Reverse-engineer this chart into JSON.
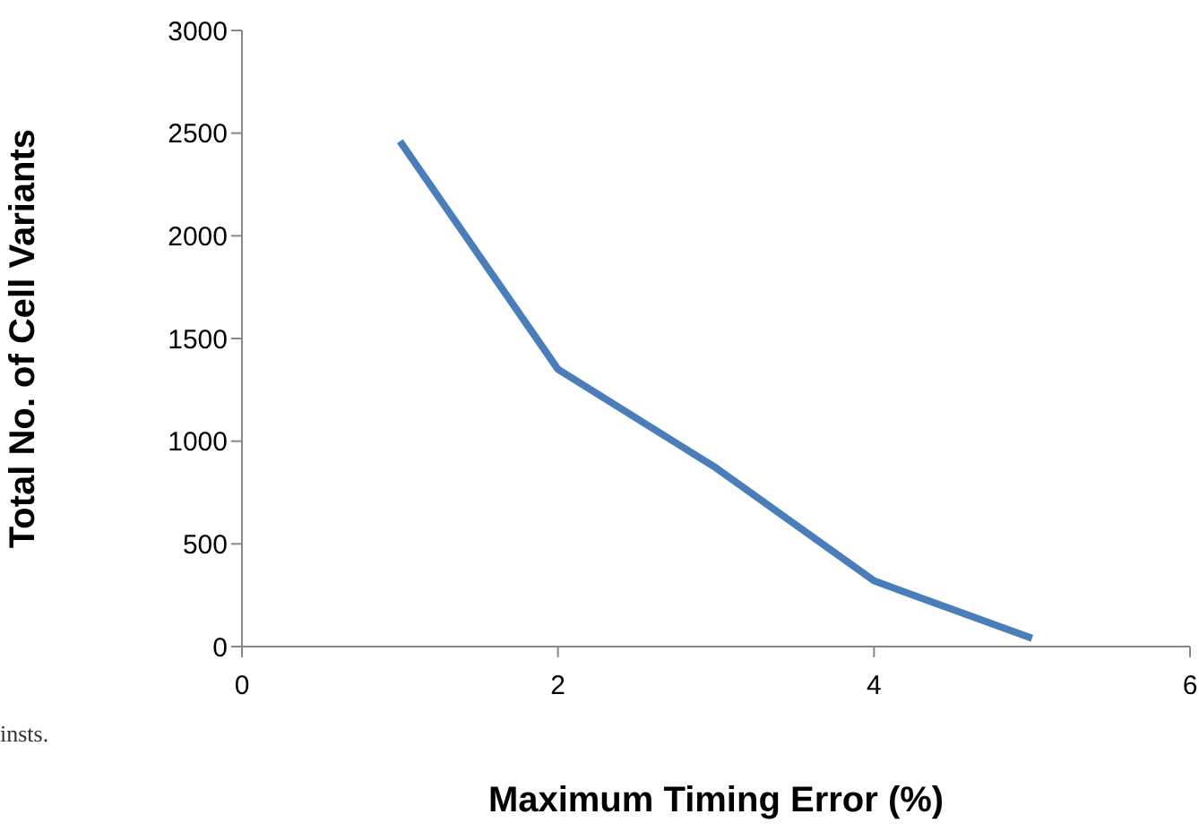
{
  "chart_data": {
    "type": "line",
    "xlabel": "Maximum Timing Error (%)",
    "ylabel": "Total No. of Cell Variants",
    "x": [
      1,
      2,
      3,
      4,
      5
    ],
    "series": [
      {
        "color": "#4a7ebb",
        "values": [
          2460,
          1350,
          870,
          320,
          40
        ]
      }
    ],
    "xlim": [
      0,
      6
    ],
    "xticks": [
      0,
      2,
      4,
      6
    ],
    "ylim": [
      0,
      3000
    ],
    "yticks": [
      0,
      500,
      1000,
      1500,
      2000,
      2500,
      3000
    ],
    "grid": false,
    "legend": false,
    "marker": "none",
    "line_style": "solid",
    "annotations": [
      "insts."
    ]
  }
}
